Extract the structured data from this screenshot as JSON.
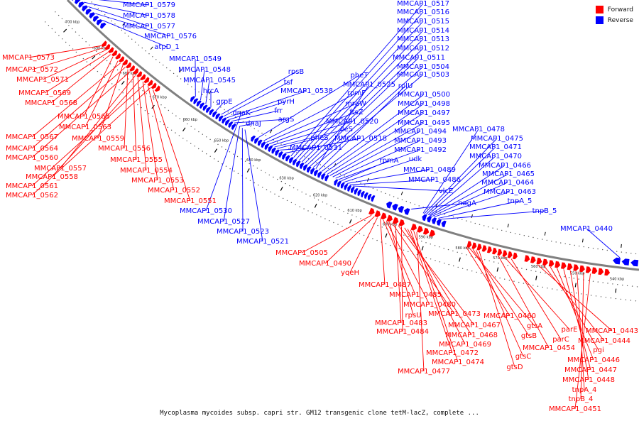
{
  "colors": {
    "forward": "#ff0000",
    "reverse": "#0000ff",
    "backbone": "#808080",
    "black": "#000000"
  },
  "legend": [
    {
      "label": "Forward",
      "color": "#ff0000"
    },
    {
      "label": "Reverse",
      "color": "#0000ff"
    }
  ],
  "caption": "Mycoplasma mycoides subsp. capri str. GM12 transgenic clone tetM-lacZ, complete ...",
  "tick_labels": [
    "700 kbp",
    "690 kbp",
    "680 kbp",
    "670 kbp",
    "660 kbp",
    "650 kbp",
    "640 kbp",
    "630 kbp",
    "620 kbp",
    "610 kbp",
    "600 kbp",
    "590 kbp",
    "580 kbp",
    "570 kbp",
    "560 kbp",
    "550 kbp",
    "540 kbp"
  ],
  "reverse_labels": [
    "MMCAP1_0579",
    "MMCAP1_0578",
    "MMCAP1_0577",
    "MMCAP1_0576",
    "atpD_1",
    "MMCAP1_0549",
    "MMCAP1_0548",
    "MMCAP1_0545",
    "hrcA",
    "grpE",
    "rpsB",
    "tsf",
    "MMCAP1_0538",
    "pyrH",
    "frr",
    "argS",
    "dnaK",
    "dnaJ",
    "pheT",
    "rpmF",
    "mraW",
    "ftsZ",
    "MMCAP1_0520",
    "ileS",
    "pheS",
    "MMCAP1_0531",
    "MMCAP1_0518",
    "MMCAP1_0517",
    "MMCAP1_0516",
    "MMCAP1_0515",
    "MMCAP1_0514",
    "MMCAP1_0513",
    "MMCAP1_0512",
    "MMCAP1_0511",
    "MMCAP1_0504",
    "MMCAP1_0503",
    "MMCAP1_0525",
    "rplU",
    "MMCAP1_0500",
    "MMCAP1_0498",
    "MMCAP1_0497",
    "MMCAP1_0495",
    "MMCAP1_0494",
    "MMCAP1_0493",
    "MMCAP1_0492",
    "rpmA",
    "udk",
    "MMCAP1_0489",
    "MMCAP1_0486",
    "vlcE",
    "MMCAP1_0478",
    "MMCAP1_0475",
    "MMCAP1_0471",
    "MMCAP1_0470",
    "MMCAP1_0466",
    "MMCAP1_0465",
    "MMCAP1_0464",
    "MMCAP1_0463",
    "nagA",
    "tnpA_5",
    "tnpB_5",
    "MMCAP1_0440",
    "MMCAP1_0530",
    "MMCAP1_0527",
    "MMCAP1_0523",
    "MMCAP1_0521"
  ],
  "forward_labels": [
    "MMCAP1_0573",
    "MMCAP1_0572",
    "MMCAP1_0571",
    "MMCAP1_0569",
    "MMCAP1_0568",
    "MMCAP1_0565",
    "MMCAP1_0563",
    "MMCAP1_0567",
    "MMCAP1_0559",
    "MMCAP1_0564",
    "MMCAP1_0556",
    "MMCAP1_0560",
    "MMCAP1_0555",
    "MMCAP1_0557",
    "MMCAP1_0554",
    "MMCAP1_0558",
    "MMCAP1_0553",
    "MMCAP1_0561",
    "MMCAP1_0552",
    "MMCAP1_0562",
    "MMCAP1_0551",
    "MMCAP1_0505",
    "MMCAP1_0490",
    "yqeH",
    "MMCAP1_0487",
    "MMCAP1_0485",
    "MMCAP1_0480",
    "rpsU",
    "MMCAP1_0473",
    "MMCAP1_0483",
    "MMCAP1_0467",
    "MMCAP1_0484",
    "MMCAP1_0468",
    "MMCAP1_0469",
    "MMCAP1_0472",
    "MMCAP1_0474",
    "MMCAP1_0477",
    "MMCAP1_0460",
    "gtsA",
    "gtsB",
    "gtsC",
    "gtsD",
    "parE",
    "parC",
    "MMCAP1_0454",
    "MMCAP1_0443",
    "MMCAP1_0444",
    "pgi",
    "MMCAP1_0446",
    "MMCAP1_0447",
    "MMCAP1_0448",
    "tnpA_4",
    "tnpB_4",
    "MMCAP1_0451"
  ]
}
